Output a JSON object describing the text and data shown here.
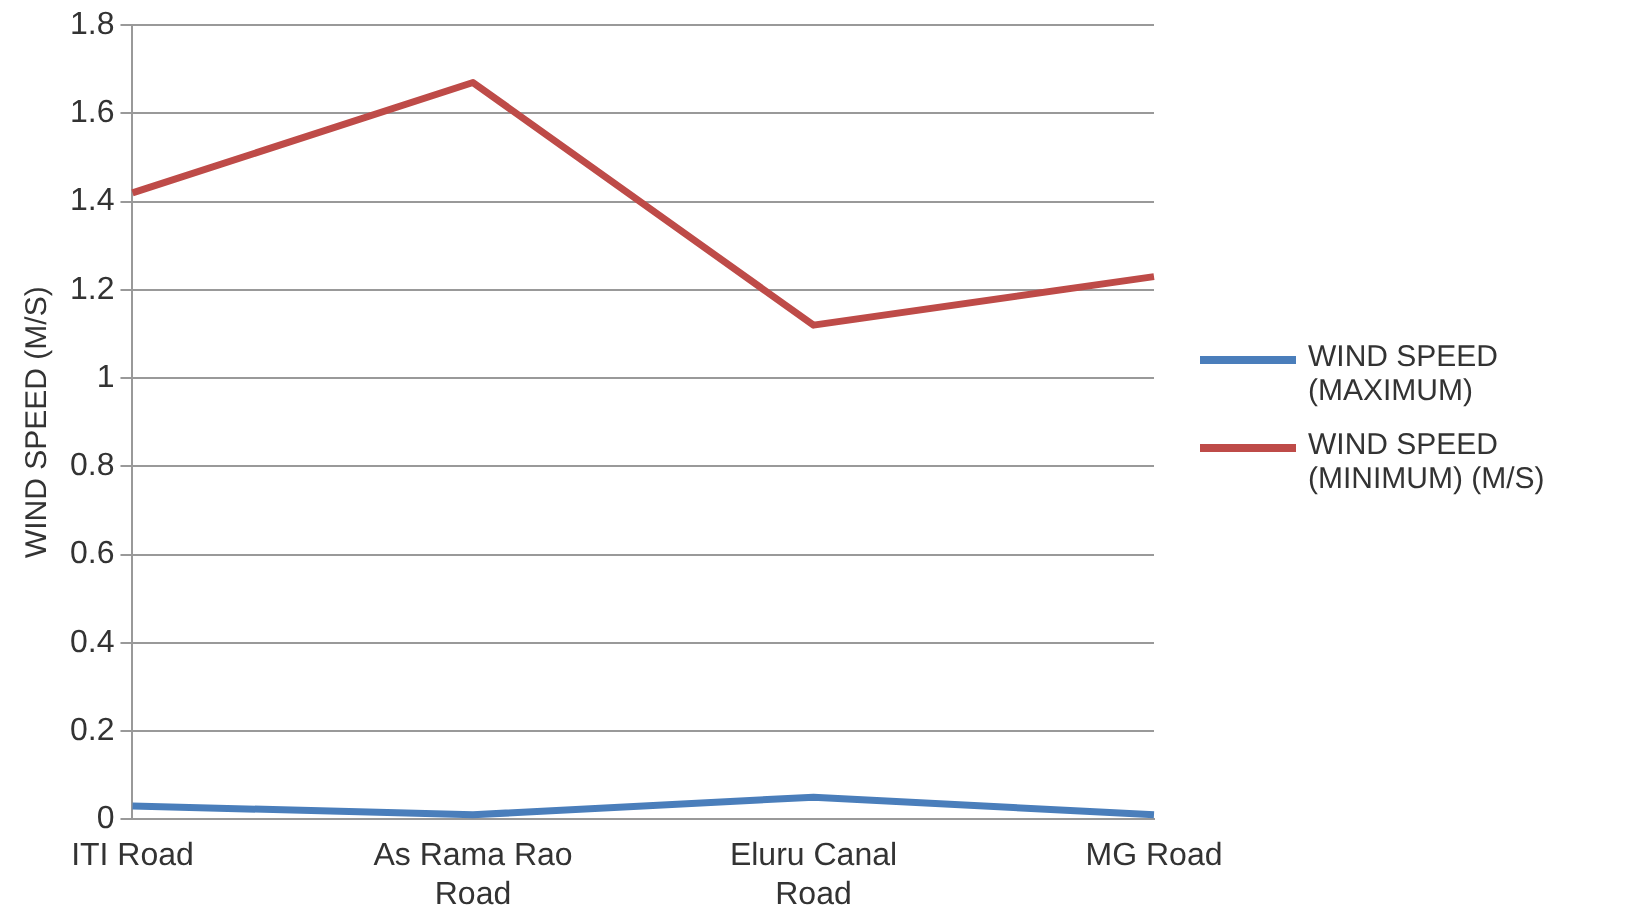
{
  "chart_data": {
    "type": "line",
    "ylabel": "WIND SPEED (M/S)",
    "categories": [
      "ITI Road",
      "As Rama Rao Road",
      "Eluru Canal Road",
      "MG Road"
    ],
    "series": [
      {
        "name": "WIND SPEED (MAXIMUM)",
        "color": "#4a7ebb",
        "values": [
          0.03,
          0.01,
          0.05,
          0.01
        ]
      },
      {
        "name": "WIND SPEED (MINIMUM) (M/S)",
        "color": "#be4b48",
        "values": [
          1.42,
          1.67,
          1.12,
          1.23
        ]
      }
    ],
    "ylim": [
      0,
      1.8
    ],
    "yticks": [
      0,
      0.2,
      0.4,
      0.6,
      0.8,
      1,
      1.2,
      1.4,
      1.6,
      1.8
    ],
    "grid": "y",
    "legend": "right",
    "marker": "none"
  }
}
